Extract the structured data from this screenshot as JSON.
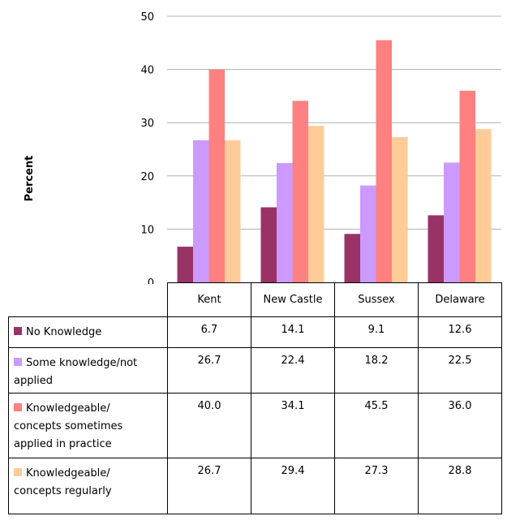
{
  "chart_data": {
    "type": "bar",
    "ylabel": "Percent",
    "ylim": [
      0,
      50
    ],
    "yticks": [
      0,
      10,
      20,
      30,
      40,
      50
    ],
    "grid": true,
    "categories": [
      "Kent",
      "New Castle",
      "Sussex",
      "Delaware"
    ],
    "series": [
      {
        "name": "No Knowledge",
        "values": [
          6.7,
          14.1,
          9.1,
          12.6
        ],
        "display": [
          "6.7",
          "14.1",
          "9.1",
          "12.6"
        ],
        "color": "#993366"
      },
      {
        "name": "Some knowledge/not applied",
        "label_lines": [
          "Some knowledge/not",
          "applied"
        ],
        "values": [
          26.7,
          22.4,
          18.2,
          22.5
        ],
        "display": [
          "26.7",
          "22.4",
          "18.2",
          "22.5"
        ],
        "color": "#cc99ff"
      },
      {
        "name": "Knowledgeable/ concepts sometimes applied in practice",
        "label_lines": [
          "Knowledgeable/",
          "concepts sometimes",
          "applied in practice"
        ],
        "values": [
          40.0,
          34.1,
          45.5,
          36.0
        ],
        "display": [
          "40.0",
          "34.1",
          "45.5",
          "36.0"
        ],
        "color": "#ff8080"
      },
      {
        "name": "Knowledgeable/ concepts regularly",
        "label_lines": [
          "Knowledgeable/",
          "concepts regularly"
        ],
        "values": [
          26.7,
          29.4,
          27.3,
          28.8
        ],
        "display": [
          "26.7",
          "29.4",
          "27.3",
          "28.8"
        ],
        "color": "#ffcc99"
      }
    ]
  }
}
